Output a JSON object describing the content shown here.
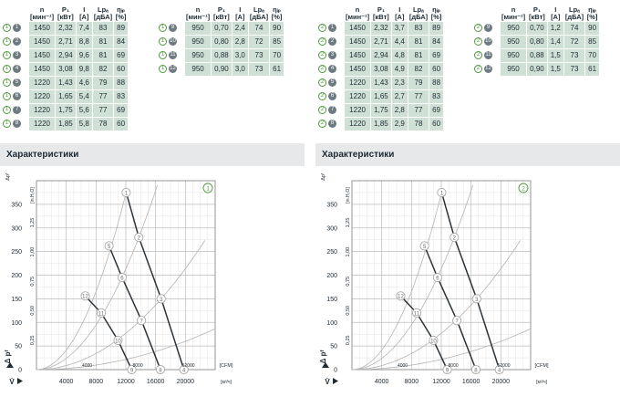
{
  "panels": [
    {
      "id": "1",
      "header": {
        "n": "n",
        "p1": "P₁",
        "i": "I",
        "lpa": "Lpₐ",
        "eta": "ηᵢₚ",
        "u_n": "[мин⁻¹]",
        "u_p1": "[кВт]",
        "u_i": "[A]",
        "u_lpa": "[дБА]",
        "u_eta": "[%]"
      },
      "rows_left": [
        {
          "a": "1",
          "b": "1",
          "n": "1450",
          "p1": "2,32",
          "i": "7,4",
          "lpa": "83",
          "eta": "89"
        },
        {
          "a": "1",
          "b": "2",
          "n": "1450",
          "p1": "2,71",
          "i": "8,8",
          "lpa": "81",
          "eta": "84"
        },
        {
          "a": "1",
          "b": "3",
          "n": "1450",
          "p1": "2,94",
          "i": "9,6",
          "lpa": "81",
          "eta": "69"
        },
        {
          "a": "1",
          "b": "4",
          "n": "1450",
          "p1": "3,08",
          "i": "9,8",
          "lpa": "82",
          "eta": "60"
        },
        {
          "a": "1",
          "b": "5",
          "n": "1220",
          "p1": "1,43",
          "i": "4,6",
          "lpa": "79",
          "eta": "88"
        },
        {
          "a": "1",
          "b": "6",
          "n": "1220",
          "p1": "1,65",
          "i": "5,4",
          "lpa": "77",
          "eta": "83"
        },
        {
          "a": "1",
          "b": "7",
          "n": "1220",
          "p1": "1,75",
          "i": "5,6",
          "lpa": "77",
          "eta": "69"
        },
        {
          "a": "1",
          "b": "8",
          "n": "1220",
          "p1": "1,85",
          "i": "5,8",
          "lpa": "78",
          "eta": "60"
        }
      ],
      "rows_right": [
        {
          "a": "1",
          "b": "9",
          "n": "950",
          "p1": "0,70",
          "i": "2,4",
          "lpa": "74",
          "eta": "90"
        },
        {
          "a": "1",
          "b": "10",
          "n": "950",
          "p1": "0,80",
          "i": "2,8",
          "lpa": "72",
          "eta": "85"
        },
        {
          "a": "1",
          "b": "11",
          "n": "950",
          "p1": "0,88",
          "i": "3,0",
          "lpa": "73",
          "eta": "70"
        },
        {
          "a": "1",
          "b": "12",
          "n": "950",
          "p1": "0,90",
          "i": "3,0",
          "lpa": "73",
          "eta": "61"
        }
      ],
      "section_title": "Характеристики",
      "chart_badge": "1"
    },
    {
      "id": "2",
      "header": {
        "n": "n",
        "p1": "P₁",
        "i": "I",
        "lpa": "Lpₐ",
        "eta": "ηᵢₚ",
        "u_n": "[мин⁻¹]",
        "u_p1": "[кВт]",
        "u_i": "[A]",
        "u_lpa": "[дБА]",
        "u_eta": "[%]"
      },
      "rows_left": [
        {
          "a": "2",
          "b": "1",
          "n": "1450",
          "p1": "2,32",
          "i": "3,7",
          "lpa": "83",
          "eta": "89"
        },
        {
          "a": "2",
          "b": "2",
          "n": "1450",
          "p1": "2,71",
          "i": "4,4",
          "lpa": "81",
          "eta": "84"
        },
        {
          "a": "2",
          "b": "3",
          "n": "1450",
          "p1": "2,94",
          "i": "4,8",
          "lpa": "81",
          "eta": "69"
        },
        {
          "a": "2",
          "b": "4",
          "n": "1450",
          "p1": "3,08",
          "i": "4,9",
          "lpa": "82",
          "eta": "60"
        },
        {
          "a": "2",
          "b": "5",
          "n": "1220",
          "p1": "1,43",
          "i": "2,3",
          "lpa": "79",
          "eta": "88"
        },
        {
          "a": "2",
          "b": "6",
          "n": "1220",
          "p1": "1,65",
          "i": "2,7",
          "lpa": "77",
          "eta": "83"
        },
        {
          "a": "2",
          "b": "7",
          "n": "1220",
          "p1": "1,75",
          "i": "2,8",
          "lpa": "77",
          "eta": "69"
        },
        {
          "a": "2",
          "b": "8",
          "n": "1220",
          "p1": "1,85",
          "i": "2,9",
          "lpa": "78",
          "eta": "60"
        }
      ],
      "rows_right": [
        {
          "a": "2",
          "b": "9",
          "n": "950",
          "p1": "0,70",
          "i": "1,2",
          "lpa": "74",
          "eta": "90"
        },
        {
          "a": "2",
          "b": "10",
          "n": "950",
          "p1": "0,80",
          "i": "1,4",
          "lpa": "72",
          "eta": "85"
        },
        {
          "a": "2",
          "b": "11",
          "n": "950",
          "p1": "0,88",
          "i": "1,5",
          "lpa": "73",
          "eta": "70"
        },
        {
          "a": "2",
          "b": "12",
          "n": "950",
          "p1": "0,90",
          "i": "1,5",
          "lpa": "73",
          "eta": "61"
        }
      ],
      "section_title": "Характеристики",
      "chart_badge": "2"
    }
  ],
  "colors": {
    "accent_green": "#4b9a3a",
    "cell_bg": "#cfe0d6",
    "section_bg": "#e6e8e9",
    "curve": "#2c3338",
    "system_curve": "#b4b4b4",
    "marker": "#a8a8a8"
  },
  "chart_data": [
    {
      "type": "line",
      "title": "",
      "ylabel": "Δpᶠ [Па]",
      "ylabel_secondary": "[in.H₂O]",
      "xlabel_primary": "[м³/ч]",
      "xlabel_secondary": "[CFM]",
      "y_axis_symbol": "Δ pᶠ",
      "x_axis_symbol": "V̇",
      "ylim": [
        0,
        400
      ],
      "xlim": [
        0,
        24000
      ],
      "yticks": [
        "0",
        "50",
        "100",
        "150",
        "200",
        "250",
        "300",
        "350"
      ],
      "xticks_primary": [
        "4000",
        "8000",
        "12000",
        "16000",
        "20000"
      ],
      "xticks_secondary": [
        "4000",
        "8000",
        "12000"
      ],
      "yticks_secondary": [
        "0,25",
        "0,50",
        "0,75",
        "1,00",
        "1,25"
      ],
      "grid": true,
      "series": [
        {
          "points": [
            {
              "label": "1",
              "x": 12050,
              "y": 375
            },
            {
              "label": "2",
              "x": 13750,
              "y": 280
            },
            {
              "label": "3",
              "x": 16750,
              "y": 150
            },
            {
              "label": "4",
              "x": 19800,
              "y": 0
            }
          ]
        },
        {
          "points": [
            {
              "label": "5",
              "x": 9750,
              "y": 262
            },
            {
              "label": "6",
              "x": 11500,
              "y": 195
            },
            {
              "label": "7",
              "x": 14100,
              "y": 104
            },
            {
              "label": "8",
              "x": 16650,
              "y": 0
            }
          ]
        },
        {
          "points": [
            {
              "label": "12",
              "x": 6550,
              "y": 156
            },
            {
              "label": "11",
              "x": 8700,
              "y": 120
            },
            {
              "label": "10",
              "x": 10950,
              "y": 62
            },
            {
              "label": "9",
              "x": 12800,
              "y": 0
            }
          ]
        }
      ]
    },
    {
      "type": "line",
      "title": "",
      "ylabel": "Δpᶠ [Па]",
      "ylabel_secondary": "[in.H₂O]",
      "xlabel_primary": "[м³/ч]",
      "xlabel_secondary": "[CFM]",
      "y_axis_symbol": "Δ pᶠ",
      "x_axis_symbol": "V̇",
      "ylim": [
        0,
        400
      ],
      "xlim": [
        0,
        24000
      ],
      "yticks": [
        "0",
        "50",
        "100",
        "150",
        "200",
        "250",
        "300",
        "350"
      ],
      "xticks_primary": [
        "4000",
        "8000",
        "12000",
        "16000",
        "20000"
      ],
      "xticks_secondary": [
        "4000",
        "8000",
        "12000"
      ],
      "yticks_secondary": [
        "0,25",
        "0,50",
        "0,75",
        "1,00",
        "1,25"
      ],
      "grid": true,
      "series": [
        {
          "points": [
            {
              "label": "1",
              "x": 12050,
              "y": 375
            },
            {
              "label": "2",
              "x": 13750,
              "y": 280
            },
            {
              "label": "3",
              "x": 16750,
              "y": 150
            },
            {
              "label": "4",
              "x": 19800,
              "y": 0
            }
          ]
        },
        {
          "points": [
            {
              "label": "5",
              "x": 9750,
              "y": 262
            },
            {
              "label": "6",
              "x": 11500,
              "y": 195
            },
            {
              "label": "7",
              "x": 14100,
              "y": 104
            },
            {
              "label": "8",
              "x": 16650,
              "y": 0
            }
          ]
        },
        {
          "points": [
            {
              "label": "12",
              "x": 6550,
              "y": 156
            },
            {
              "label": "11",
              "x": 8700,
              "y": 120
            },
            {
              "label": "10",
              "x": 10950,
              "y": 62
            },
            {
              "label": "9",
              "x": 12800,
              "y": 0
            }
          ]
        }
      ]
    }
  ]
}
